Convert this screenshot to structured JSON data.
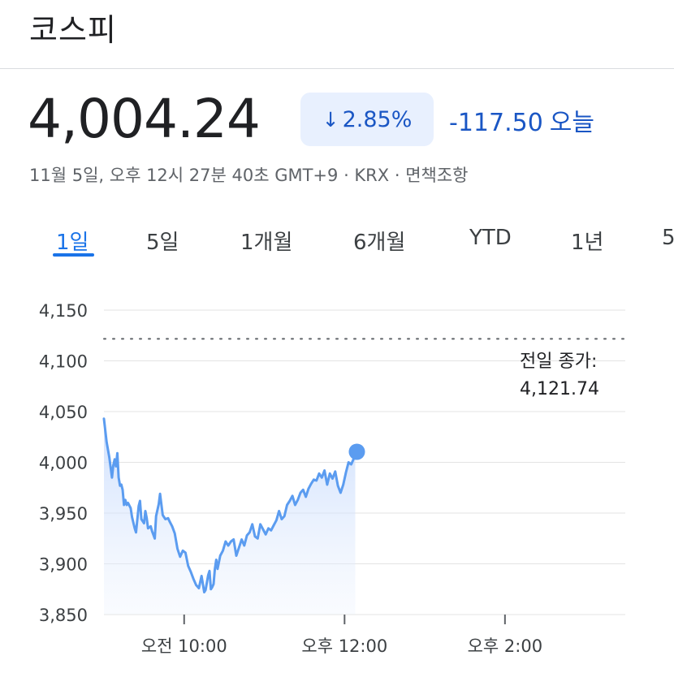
{
  "header": {
    "title": "코스피"
  },
  "quote": {
    "price": "4,004.24",
    "change_arrow": "↓",
    "change_pct": "2.85%",
    "change_abs": "-117.50",
    "change_period": "오늘",
    "meta": "11월 5일, 오후 12시 27분 40초 GMT+9 · KRX · 면책조항"
  },
  "tabs": [
    {
      "label": "1일",
      "active": true
    },
    {
      "label": "5일"
    },
    {
      "label": "1개월"
    },
    {
      "label": "6개월"
    },
    {
      "label": "YTD"
    },
    {
      "label": "1년"
    },
    {
      "label": "5"
    }
  ],
  "prev_close": {
    "label": "전일 종가:",
    "value": "4,121.74"
  },
  "colors": {
    "accent": "#1a73e8",
    "line": "#5b9cf0",
    "down": "#1a56c4",
    "pill_bg": "#e8f0fe"
  },
  "chart_data": {
    "type": "line",
    "x_labels": [
      "오전 10:00",
      "오후 12:00",
      "오후 2:00"
    ],
    "y_ticks": [
      "4,150",
      "4,100",
      "4,050",
      "4,000",
      "3,950",
      "3,900",
      "3,850"
    ],
    "ylim": [
      3850,
      4150
    ],
    "x_range_minutes": [
      540,
      930
    ],
    "previous_close": 4121.74,
    "grid": true,
    "series": [
      {
        "x": [
          540,
          542,
          544,
          546,
          547,
          548,
          549,
          550,
          551,
          552,
          553,
          554,
          555,
          556,
          557,
          558,
          560,
          561,
          563,
          564,
          566,
          567,
          568,
          570,
          571,
          572,
          573,
          575,
          576,
          578,
          579,
          581,
          582,
          584,
          586,
          588,
          589,
          591,
          593,
          595,
          597,
          599,
          601,
          603,
          605,
          607,
          609,
          611,
          613,
          615,
          616,
          618,
          619,
          620,
          621,
          622,
          623,
          624,
          625,
          627,
          629,
          631,
          633,
          635,
          637,
          639,
          641,
          643,
          645,
          647,
          649,
          651,
          653,
          655,
          657,
          659,
          661,
          663,
          665,
          667,
          669,
          671,
          673,
          675,
          677,
          679,
          681,
          683,
          685,
          687,
          689,
          691,
          693,
          695,
          697,
          699,
          701,
          703,
          705,
          707,
          709,
          711,
          713,
          715,
          717,
          719,
          721,
          723,
          725,
          727,
          728
        ],
        "y": [
          4043,
          4020,
          4005,
          3985,
          3997,
          4003,
          3996,
          4009,
          3985,
          3977,
          3978,
          3973,
          3958,
          3963,
          3958,
          3960,
          3955,
          3946,
          3935,
          3931,
          3957,
          3962,
          3944,
          3940,
          3952,
          3945,
          3935,
          3937,
          3932,
          3925,
          3947,
          3959,
          3969,
          3948,
          3944,
          3945,
          3942,
          3937,
          3930,
          3915,
          3907,
          3913,
          3911,
          3898,
          3892,
          3885,
          3879,
          3876,
          3888,
          3872,
          3874,
          3889,
          3893,
          3875,
          3877,
          3880,
          3895,
          3904,
          3895,
          3908,
          3913,
          3922,
          3918,
          3922,
          3924,
          3908,
          3916,
          3924,
          3918,
          3928,
          3931,
          3939,
          3927,
          3925,
          3939,
          3934,
          3929,
          3935,
          3933,
          3938,
          3943,
          3952,
          3944,
          3947,
          3958,
          3962,
          3967,
          3958,
          3963,
          3970,
          3973,
          3966,
          3974,
          3979,
          3983,
          3982,
          3989,
          3985,
          3992,
          3978,
          3989,
          3984,
          3991,
          3977,
          3970,
          3978,
          3990,
          4000,
          3998,
          4004,
          4004
        ]
      }
    ]
  }
}
